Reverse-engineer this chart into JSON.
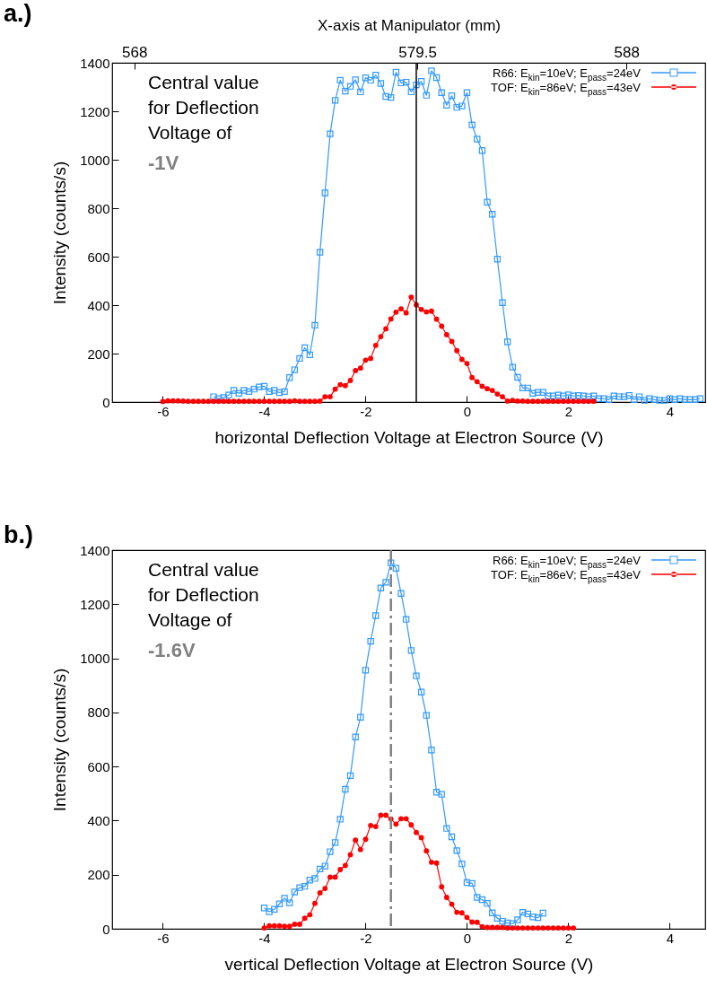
{
  "chart_data": [
    {
      "type": "line",
      "title": "a.)",
      "xlabel": "horizontal Deflection Voltage at Electron Source (V)",
      "x2label": "X-axis at Manipulator (mm)",
      "ylabel": "Intensity (counts/s)",
      "xlim": [
        -7,
        4.7
      ],
      "xticks": [
        -6,
        -4,
        -2,
        0,
        2,
        4
      ],
      "x2lim": [
        567.1,
        591.2
      ],
      "x2ticks": [
        568,
        579.5,
        588
      ],
      "ylim": [
        0,
        1400
      ],
      "yticks": [
        0,
        200,
        400,
        600,
        800,
        1000,
        1200,
        1400
      ],
      "legend": "top right",
      "annotations": [
        "Central value\nfor Deflection\nVoltage of",
        "-1V"
      ],
      "ref_lines": [
        {
          "axis": "x",
          "value": -1,
          "color": "#000000",
          "line_style": "solid"
        }
      ],
      "series": [
        {
          "name": "R66: E$_{kin}$=10eV; E$_{pass}$=24eV",
          "color": "#3399ff",
          "marker": "square",
          "x": [
            -5,
            -4.9,
            -4.8,
            -4.7,
            -4.6,
            -4.5,
            -4.4,
            -4.3,
            -4.2,
            -4.1,
            -4,
            -3.9,
            -3.8,
            -3.7,
            -3.6,
            -3.5,
            -3.4,
            -3.3,
            -3.2,
            -3.1,
            -3,
            -2.9,
            -2.8,
            -2.7,
            -2.6,
            -2.5,
            -2.4,
            -2.3,
            -2.2,
            -2.1,
            -2,
            -1.9,
            -1.8,
            -1.7,
            -1.6,
            -1.5,
            -1.4,
            -1.3,
            -1.2,
            -1.1,
            -1,
            -0.9,
            -0.8,
            -0.7,
            -0.6,
            -0.5,
            -0.4,
            -0.3,
            -0.2,
            -0.1,
            0,
            0.1,
            0.2,
            0.3,
            0.4,
            0.5,
            0.6,
            0.7,
            0.8,
            0.9,
            1,
            1.1,
            1.2,
            1.3,
            1.4,
            1.5,
            1.6,
            1.7,
            1.8,
            1.9,
            2,
            2.1,
            2.2,
            2.3,
            2.4,
            2.5,
            2.6,
            2.7,
            2.8,
            2.9,
            3,
            3.1,
            3.2,
            3.3,
            3.4,
            3.5,
            3.6,
            3.7,
            3.8,
            3.9,
            4,
            4.1,
            4.2,
            4.3,
            4.4,
            4.5,
            4.6
          ],
          "values": [
            22,
            14,
            19,
            29,
            48,
            36,
            48,
            43,
            53,
            62,
            65,
            43,
            48,
            39,
            43,
            101,
            133,
            180,
            224,
            195,
            317,
            618,
            863,
            1107,
            1245,
            1328,
            1283,
            1303,
            1330,
            1280,
            1338,
            1328,
            1349,
            1315,
            1261,
            1257,
            1361,
            1317,
            1320,
            1280,
            1309,
            1323,
            1266,
            1367,
            1339,
            1277,
            1225,
            1264,
            1216,
            1222,
            1277,
            1144,
            1085,
            1038,
            825,
            775,
            590,
            410,
            248,
            144,
            102,
            58,
            58,
            36,
            40,
            40,
            25,
            25,
            29,
            25,
            30,
            25,
            27,
            25,
            22,
            25,
            14,
            14,
            10,
            25,
            22,
            22,
            27,
            10,
            22,
            7,
            14,
            10,
            7,
            7,
            14,
            10,
            14,
            10,
            10,
            10,
            14
          ]
        },
        {
          "name": "TOF: E$_{kin}$=86eV; E$_{pass}$=43eV",
          "color": "#ff0000",
          "marker": "circle",
          "x": [
            -6,
            -5.9,
            -5.8,
            -5.7,
            -5.6,
            -5.5,
            -5.4,
            -5.3,
            -5.2,
            -5.1,
            -5,
            -4.9,
            -4.8,
            -4.7,
            -4.6,
            -4.5,
            -4.4,
            -4.3,
            -4.2,
            -4.1,
            -4,
            -3.9,
            -3.8,
            -3.7,
            -3.6,
            -3.5,
            -3.4,
            -3.3,
            -3.2,
            -3.1,
            -3,
            -2.9,
            -2.8,
            -2.7,
            -2.6,
            -2.5,
            -2.4,
            -2.3,
            -2.2,
            -2.1,
            -2,
            -1.9,
            -1.8,
            -1.7,
            -1.6,
            -1.5,
            -1.4,
            -1.3,
            -1.2,
            -1.1,
            -1,
            -0.9,
            -0.8,
            -0.7,
            -0.6,
            -0.5,
            -0.4,
            -0.3,
            -0.2,
            -0.1,
            0,
            0.1,
            0.2,
            0.3,
            0.4,
            0.5,
            0.6,
            0.7,
            0.8,
            0.9,
            1,
            1.1,
            1.2,
            1.3,
            1.4,
            1.5,
            1.6,
            1.7,
            1.8,
            1.9,
            2,
            2.1,
            2.2,
            2.3,
            2.4,
            2.5
          ],
          "values": [
            2,
            5,
            5,
            5,
            4,
            3,
            3,
            3,
            3,
            3,
            3,
            3,
            3,
            3,
            3,
            3,
            3,
            3,
            3,
            3,
            3,
            3,
            3,
            3,
            3,
            3,
            5,
            3,
            3,
            3,
            3,
            4,
            22,
            22,
            53,
            72,
            68,
            89,
            130,
            140,
            173,
            180,
            234,
            270,
            302,
            343,
            371,
            385,
            368,
            433,
            401,
            382,
            372,
            375,
            342,
            313,
            278,
            250,
            212,
            176,
            159,
            101,
            84,
            65,
            55,
            48,
            33,
            22,
            4,
            7,
            4,
            4,
            3,
            3,
            3,
            3,
            3,
            3,
            3,
            3,
            3,
            3,
            3,
            3,
            3,
            3
          ]
        }
      ]
    },
    {
      "type": "line",
      "title": "b.)",
      "xlabel": "vertical Deflection Voltage at Electron Source (V)",
      "ylabel": "Intensity (counts/s)",
      "xlim": [
        -7,
        4.7
      ],
      "xticks": [
        -6,
        -4,
        -2,
        0,
        2,
        4
      ],
      "ylim": [
        0,
        1400
      ],
      "yticks": [
        0,
        200,
        400,
        600,
        800,
        1000,
        1200,
        1400
      ],
      "legend": "top right",
      "annotations": [
        "Central value\nfor Deflection\nVoltage of",
        "-1.6V"
      ],
      "ref_lines": [
        {
          "axis": "x",
          "value": -1.5,
          "color": "#808080",
          "line_style": "dashed"
        }
      ],
      "series": [
        {
          "name": "R66: E$_{kin}$=10eV; E$_{pass}$=24eV",
          "color": "#3399ff",
          "marker": "square",
          "x": [
            -4,
            -3.9,
            -3.8,
            -3.7,
            -3.6,
            -3.5,
            -3.4,
            -3.3,
            -3.2,
            -3.1,
            -3,
            -2.9,
            -2.8,
            -2.7,
            -2.6,
            -2.5,
            -2.4,
            -2.3,
            -2.2,
            -2.1,
            -2,
            -1.9,
            -1.8,
            -1.7,
            -1.6,
            -1.5,
            -1.4,
            -1.3,
            -1.2,
            -1.1,
            -1,
            -0.9,
            -0.8,
            -0.7,
            -0.6,
            -0.5,
            -0.4,
            -0.3,
            -0.2,
            -0.1,
            0,
            0.1,
            0.2,
            0.3,
            0.4,
            0.5,
            0.6,
            0.7,
            0.8,
            0.9,
            1,
            1.1,
            1.2,
            1.3,
            1.4,
            1.5
          ],
          "values": [
            77,
            63,
            72,
            92,
            113,
            96,
            136,
            152,
            157,
            180,
            186,
            221,
            232,
            285,
            319,
            405,
            516,
            566,
            709,
            782,
            956,
            1063,
            1158,
            1260,
            1281,
            1353,
            1333,
            1240,
            1144,
            1029,
            935,
            875,
            789,
            661,
            505,
            497,
            371,
            340,
            289,
            240,
            171,
            168,
            116,
            108,
            94,
            59,
            39,
            28,
            22,
            19,
            33,
            61,
            55,
            44,
            41,
            58
          ]
        },
        {
          "name": "TOF: E$_{kin}$=86eV; E$_{pass}$=43eV",
          "color": "#ff0000",
          "marker": "circle",
          "x": [
            -4,
            -3.9,
            -3.8,
            -3.7,
            -3.6,
            -3.5,
            -3.4,
            -3.3,
            -3.2,
            -3.1,
            -3,
            -2.9,
            -2.8,
            -2.7,
            -2.6,
            -2.5,
            -2.4,
            -2.3,
            -2.2,
            -2.1,
            -2,
            -1.9,
            -1.8,
            -1.7,
            -1.6,
            -1.5,
            -1.4,
            -1.3,
            -1.2,
            -1.1,
            -1,
            -0.9,
            -0.8,
            -0.7,
            -0.6,
            -0.5,
            -0.4,
            -0.3,
            -0.2,
            -0.1,
            0,
            0.1,
            0.2,
            0.3,
            0.4,
            0.5,
            0.6,
            0.7,
            0.8,
            0.9,
            1,
            1.1,
            1.2,
            1.3,
            1.4,
            1.5,
            1.6,
            1.7,
            1.8,
            1.9,
            2,
            2.1
          ],
          "values": [
            3,
            11,
            11,
            11,
            9,
            9,
            17,
            17,
            39,
            52,
            94,
            133,
            149,
            191,
            191,
            219,
            234,
            274,
            328,
            293,
            331,
            382,
            378,
            420,
            420,
            406,
            387,
            407,
            407,
            384,
            356,
            337,
            288,
            246,
            243,
            155,
            116,
            91,
            61,
            59,
            42,
            25,
            24,
            8,
            5,
            5,
            5,
            5,
            3,
            3,
            3,
            3,
            3,
            3,
            3,
            3,
            3,
            3,
            3,
            3,
            3,
            3
          ]
        }
      ]
    }
  ]
}
